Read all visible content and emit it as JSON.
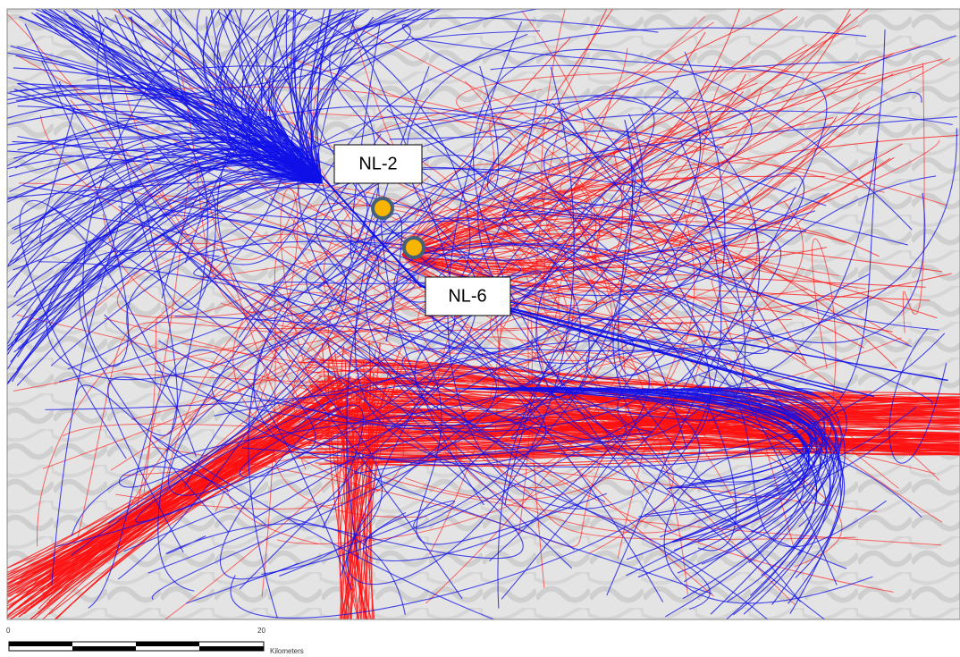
{
  "markers": [
    {
      "label": "NL-2"
    },
    {
      "label": "NL-6"
    }
  ],
  "scale_bar": {
    "labels": [
      "0",
      "20"
    ],
    "unit": "Kilometers"
  }
}
